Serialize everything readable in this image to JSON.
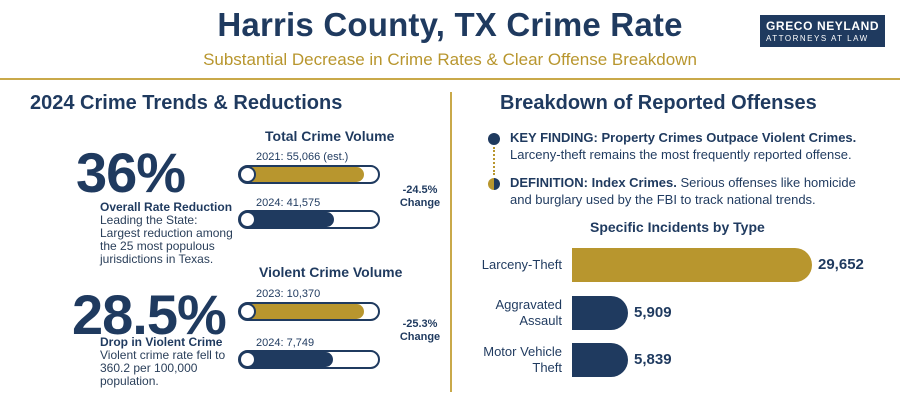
{
  "header": {
    "title": "Harris County, TX Crime Rate",
    "subtitle": "Substantial Decrease in Crime Rates & Clear Offense Breakdown",
    "logo_line1": "GRECO NEYLAND",
    "logo_line2": "ATTORNEYS AT LAW"
  },
  "left": {
    "heading": "2024 Crime Trends & Reductions",
    "stat1": {
      "value": "36%",
      "label": "Overall Rate Reduction",
      "desc_lines": [
        "Leading the State:",
        "Largest reduction among",
        "the 25 most populous",
        "jurisdictions in Texas."
      ]
    },
    "stat2": {
      "value": "28.5%",
      "label": "Drop in Violent Crime",
      "desc_lines": [
        "Violent crime rate fell to",
        "360.2 per 100,000",
        "population."
      ]
    },
    "total_volume": {
      "title": "Total Crime Volume",
      "bar1_caption": "2021: 55,066 (est.)",
      "bar1_value": 55066,
      "bar2_caption": "2024: 41,575",
      "bar2_value": 41575,
      "change_pct": "-24.5%",
      "change_word": "Change"
    },
    "violent_volume": {
      "title": "Violent Crime Volume",
      "bar1_caption": "2023: 10,370",
      "bar1_value": 10370,
      "bar2_caption": "2024: 7,749",
      "bar2_value": 7749,
      "change_pct": "-25.3%",
      "change_word": "Change"
    }
  },
  "right": {
    "heading": "Breakdown of Reported Offenses",
    "finding1_bold": "KEY FINDING: Property Crimes Outpace Violent Crimes.",
    "finding1_text": "Larceny-theft remains the most frequently reported offense.",
    "finding2_bold": "DEFINITION: Index Crimes.",
    "finding2_text_a": "Serious offenses like homicide",
    "finding2_text_b": "and burglary used by the FBI to track national trends.",
    "chart_title": "Specific Incidents by Type"
  },
  "colors": {
    "navy": "#1f3a5f",
    "gold": "#b8962e"
  },
  "chart_data": {
    "type": "bar",
    "title": "Specific Incidents by Type",
    "categories": [
      "Larceny-Theft",
      "Aggravated Assault",
      "Motor Vehicle Theft"
    ],
    "label_lines": [
      [
        "Larceny-Theft"
      ],
      [
        "Aggravated",
        "Assault"
      ],
      [
        "Motor Vehicle",
        "Theft"
      ]
    ],
    "values": [
      29652,
      5909,
      5839
    ],
    "value_labels": [
      "29,652",
      "5,909",
      "5,839"
    ],
    "colors": [
      "#b8962e",
      "#1f3a5f",
      "#1f3a5f"
    ]
  }
}
